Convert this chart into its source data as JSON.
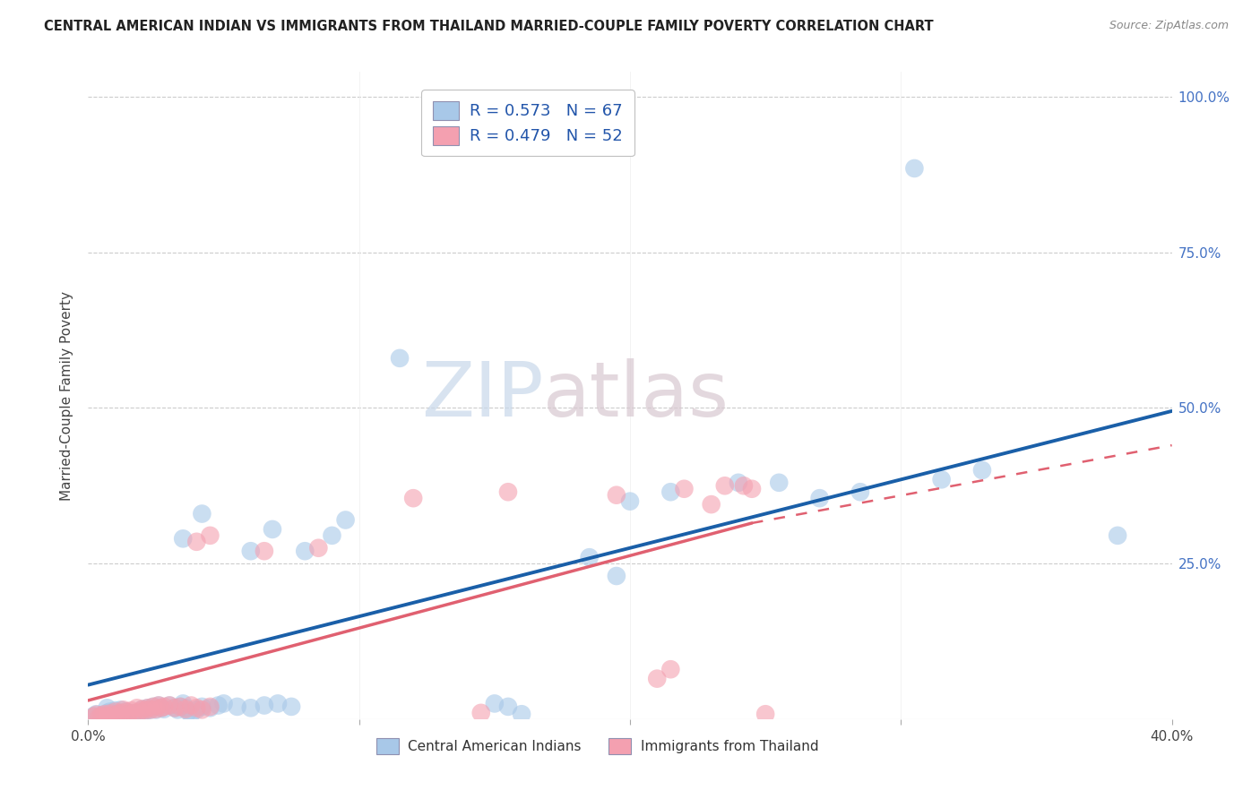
{
  "title": "CENTRAL AMERICAN INDIAN VS IMMIGRANTS FROM THAILAND MARRIED-COUPLE FAMILY POVERTY CORRELATION CHART",
  "source": "Source: ZipAtlas.com",
  "ylabel": "Married-Couple Family Poverty",
  "xmin": 0.0,
  "xmax": 0.4,
  "ymin": 0.0,
  "ymax": 1.04,
  "xticks": [
    0.0,
    0.1,
    0.2,
    0.3,
    0.4
  ],
  "xticklabels": [
    "0.0%",
    "",
    "",
    "",
    "40.0%"
  ],
  "yticks_right": [
    0.25,
    0.5,
    0.75,
    1.0
  ],
  "yticklabels_right": [
    "25.0%",
    "50.0%",
    "75.0%",
    "100.0%"
  ],
  "watermark_zip": "ZIP",
  "watermark_atlas": "atlas",
  "blue_color": "#a8c8e8",
  "pink_color": "#f4a0b0",
  "blue_line_color": "#1a5fa8",
  "pink_line_color": "#e06070",
  "blue_line": [
    [
      0.0,
      0.055
    ],
    [
      0.4,
      0.495
    ]
  ],
  "pink_line_solid": [
    [
      0.0,
      0.03
    ],
    [
      0.245,
      0.315
    ]
  ],
  "pink_line_dashed": [
    [
      0.245,
      0.315
    ],
    [
      0.4,
      0.44
    ]
  ],
  "blue_scatter": [
    [
      0.002,
      0.005
    ],
    [
      0.003,
      0.008
    ],
    [
      0.004,
      0.003
    ],
    [
      0.005,
      0.006
    ],
    [
      0.006,
      0.004
    ],
    [
      0.007,
      0.01
    ],
    [
      0.007,
      0.018
    ],
    [
      0.008,
      0.012
    ],
    [
      0.009,
      0.007
    ],
    [
      0.01,
      0.014
    ],
    [
      0.01,
      0.005
    ],
    [
      0.011,
      0.009
    ],
    [
      0.012,
      0.015
    ],
    [
      0.013,
      0.007
    ],
    [
      0.014,
      0.012
    ],
    [
      0.015,
      0.008
    ],
    [
      0.016,
      0.005
    ],
    [
      0.017,
      0.01
    ],
    [
      0.018,
      0.006
    ],
    [
      0.019,
      0.004
    ],
    [
      0.02,
      0.016
    ],
    [
      0.021,
      0.012
    ],
    [
      0.022,
      0.018
    ],
    [
      0.023,
      0.015
    ],
    [
      0.024,
      0.02
    ],
    [
      0.025,
      0.015
    ],
    [
      0.026,
      0.022
    ],
    [
      0.027,
      0.018
    ],
    [
      0.028,
      0.016
    ],
    [
      0.03,
      0.022
    ],
    [
      0.032,
      0.018
    ],
    [
      0.033,
      0.015
    ],
    [
      0.034,
      0.02
    ],
    [
      0.035,
      0.025
    ],
    [
      0.036,
      0.018
    ],
    [
      0.037,
      0.012
    ],
    [
      0.038,
      0.008
    ],
    [
      0.04,
      0.015
    ],
    [
      0.042,
      0.02
    ],
    [
      0.045,
      0.018
    ],
    [
      0.048,
      0.022
    ],
    [
      0.05,
      0.025
    ],
    [
      0.055,
      0.02
    ],
    [
      0.06,
      0.018
    ],
    [
      0.065,
      0.022
    ],
    [
      0.07,
      0.025
    ],
    [
      0.075,
      0.02
    ],
    [
      0.035,
      0.29
    ],
    [
      0.042,
      0.33
    ],
    [
      0.06,
      0.27
    ],
    [
      0.068,
      0.305
    ],
    [
      0.08,
      0.27
    ],
    [
      0.09,
      0.295
    ],
    [
      0.095,
      0.32
    ],
    [
      0.115,
      0.58
    ],
    [
      0.15,
      0.025
    ],
    [
      0.155,
      0.02
    ],
    [
      0.16,
      0.008
    ],
    [
      0.185,
      0.26
    ],
    [
      0.195,
      0.23
    ],
    [
      0.2,
      0.35
    ],
    [
      0.215,
      0.365
    ],
    [
      0.24,
      0.38
    ],
    [
      0.255,
      0.38
    ],
    [
      0.27,
      0.355
    ],
    [
      0.285,
      0.365
    ],
    [
      0.305,
      0.885
    ],
    [
      0.315,
      0.385
    ],
    [
      0.33,
      0.4
    ],
    [
      0.38,
      0.295
    ]
  ],
  "pink_scatter": [
    [
      0.002,
      0.004
    ],
    [
      0.003,
      0.007
    ],
    [
      0.004,
      0.003
    ],
    [
      0.005,
      0.006
    ],
    [
      0.006,
      0.008
    ],
    [
      0.007,
      0.005
    ],
    [
      0.008,
      0.009
    ],
    [
      0.009,
      0.006
    ],
    [
      0.01,
      0.012
    ],
    [
      0.011,
      0.008
    ],
    [
      0.012,
      0.01
    ],
    [
      0.013,
      0.015
    ],
    [
      0.014,
      0.012
    ],
    [
      0.015,
      0.008
    ],
    [
      0.016,
      0.014
    ],
    [
      0.017,
      0.01
    ],
    [
      0.018,
      0.018
    ],
    [
      0.019,
      0.012
    ],
    [
      0.02,
      0.016
    ],
    [
      0.021,
      0.014
    ],
    [
      0.022,
      0.018
    ],
    [
      0.023,
      0.015
    ],
    [
      0.024,
      0.02
    ],
    [
      0.025,
      0.016
    ],
    [
      0.026,
      0.022
    ],
    [
      0.027,
      0.018
    ],
    [
      0.028,
      0.02
    ],
    [
      0.03,
      0.022
    ],
    [
      0.032,
      0.018
    ],
    [
      0.034,
      0.02
    ],
    [
      0.036,
      0.016
    ],
    [
      0.038,
      0.022
    ],
    [
      0.04,
      0.018
    ],
    [
      0.042,
      0.015
    ],
    [
      0.045,
      0.02
    ],
    [
      0.04,
      0.285
    ],
    [
      0.045,
      0.295
    ],
    [
      0.065,
      0.27
    ],
    [
      0.085,
      0.275
    ],
    [
      0.12,
      0.355
    ],
    [
      0.145,
      0.01
    ],
    [
      0.155,
      0.365
    ],
    [
      0.195,
      0.36
    ],
    [
      0.22,
      0.37
    ],
    [
      0.23,
      0.345
    ],
    [
      0.235,
      0.375
    ],
    [
      0.242,
      0.375
    ],
    [
      0.245,
      0.37
    ],
    [
      0.25,
      0.008
    ],
    [
      0.21,
      0.065
    ],
    [
      0.215,
      0.08
    ]
  ],
  "blue_R": 0.573,
  "blue_N": 67,
  "pink_R": 0.479,
  "pink_N": 52
}
